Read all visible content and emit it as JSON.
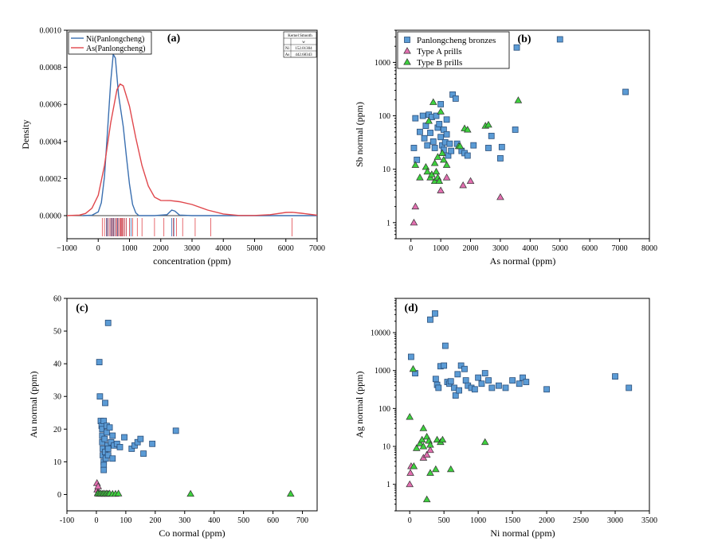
{
  "chart_data": [
    {
      "type": "line",
      "panel_label": "(a)",
      "xlabel": "concentration (ppm)",
      "ylabel": "Density",
      "xlim": [
        -1000,
        7000
      ],
      "ylim": [
        0,
        0.001
      ],
      "x_ticks": [
        -1000,
        0,
        1000,
        2000,
        3000,
        4000,
        5000,
        6000,
        7000
      ],
      "x_tick_labels": [
        "−1000",
        "0",
        "1000",
        "2000",
        "3000",
        "4000",
        "5000",
        "6000",
        "7000"
      ],
      "y_ticks": [
        0,
        0.0002,
        0.0004,
        0.0006,
        0.0008,
        0.001
      ],
      "y_tick_labels": [
        "0.0000",
        "0.0002",
        "0.0004",
        "0.0006",
        "0.0008",
        "0.0010"
      ],
      "legend_position": "top-left",
      "series": [
        {
          "name": "Ni(Panlongcheng)",
          "color": "#3a6fb0",
          "x": [
            -500,
            -200,
            0,
            100,
            200,
            300,
            400,
            480,
            550,
            650,
            800,
            900,
            1000,
            1100,
            1200,
            1300,
            1500,
            1800,
            2200,
            2350,
            2450,
            2600,
            3000,
            7000
          ],
          "y": [
            0,
            2e-06,
            2e-05,
            7e-05,
            0.00021,
            0.00046,
            0.00072,
            0.00087,
            0.00085,
            0.00065,
            0.00048,
            0.00032,
            0.00017,
            6e-05,
            1.5e-05,
            0,
            0,
            0,
            5e-06,
            3e-05,
            2.5e-05,
            3e-06,
            0,
            0
          ],
          "rug": [
            260,
            300,
            350,
            400,
            420,
            450,
            480,
            500,
            550,
            600,
            620,
            650,
            700,
            750,
            800,
            850,
            900,
            1000,
            1050,
            2350,
            2420
          ]
        },
        {
          "name": "As(Panlongcheng)",
          "color": "#e0474c",
          "x": [
            -1000,
            -600,
            -400,
            -200,
            0,
            200,
            400,
            600,
            700,
            800,
            1000,
            1200,
            1400,
            1600,
            1800,
            2000,
            2300,
            2600,
            3000,
            3500,
            4000,
            4500,
            5000,
            5500,
            6000,
            6200,
            6500,
            7000
          ],
          "y": [
            0,
            3e-06,
            1.2e-05,
            4e-05,
            0.00011,
            0.00027,
            0.0005,
            0.00068,
            0.00071,
            0.0007,
            0.00059,
            0.00042,
            0.00027,
            0.00016,
            0.0001,
            8.2e-05,
            8.1e-05,
            7.5e-05,
            6e-05,
            3e-05,
            9e-06,
            1e-06,
            1e-06,
            5e-06,
            1.7e-05,
            1.8e-05,
            1.3e-05,
            2e-06
          ],
          "rug": [
            130,
            200,
            280,
            350,
            400,
            450,
            500,
            560,
            600,
            650,
            700,
            720,
            750,
            780,
            800,
            850,
            900,
            1000,
            1100,
            1250,
            1400,
            1800,
            2100,
            2400,
            2500,
            2700,
            3100,
            3600,
            6200
          ]
        }
      ],
      "inset_table": {
        "title": "Kernel Smooth",
        "header": [
          "",
          "w"
        ],
        "rows": [
          [
            "Ni",
            "152.01304"
          ],
          [
            "As",
            "442.68343"
          ]
        ]
      }
    },
    {
      "type": "scatter",
      "panel_label": "(b)",
      "xlabel": "As normal (ppm)",
      "ylabel": "Sb normal (ppm)",
      "xlim": [
        -500,
        8000
      ],
      "ylim_log": [
        0.5,
        4000
      ],
      "y_scale": "log",
      "x_ticks": [
        0,
        1000,
        2000,
        3000,
        4000,
        5000,
        6000,
        7000,
        8000
      ],
      "y_ticks": [
        1,
        10,
        100,
        1000
      ],
      "legend_position": "top-left",
      "series": [
        {
          "name": "Panlongcheng bronzes",
          "marker": "square",
          "color": "#5b9bd5",
          "points": [
            [
              100,
              25
            ],
            [
              150,
              90
            ],
            [
              200,
              15
            ],
            [
              300,
              50
            ],
            [
              400,
              100
            ],
            [
              450,
              38
            ],
            [
              500,
              65
            ],
            [
              550,
              28
            ],
            [
              600,
              105
            ],
            [
              650,
              48
            ],
            [
              700,
              95
            ],
            [
              750,
              33
            ],
            [
              800,
              25
            ],
            [
              850,
              100
            ],
            [
              900,
              60
            ],
            [
              950,
              70
            ],
            [
              1000,
              40
            ],
            [
              1000,
              165
            ],
            [
              1050,
              28
            ],
            [
              1100,
              55
            ],
            [
              1100,
              23
            ],
            [
              1150,
              32
            ],
            [
              1200,
              45
            ],
            [
              1200,
              85
            ],
            [
              1250,
              18
            ],
            [
              1300,
              30
            ],
            [
              1350,
              22
            ],
            [
              1400,
              250
            ],
            [
              1500,
              210
            ],
            [
              1550,
              30
            ],
            [
              1700,
              22
            ],
            [
              1800,
              20
            ],
            [
              1900,
              18
            ],
            [
              2100,
              28
            ],
            [
              2600,
              25
            ],
            [
              2700,
              42
            ],
            [
              3000,
              16
            ],
            [
              3050,
              26
            ],
            [
              3500,
              55
            ],
            [
              3550,
              1900
            ],
            [
              5000,
              2700
            ],
            [
              7200,
              280
            ]
          ]
        },
        {
          "name": "Type A prills",
          "marker": "triangle",
          "color": "#e26fb0",
          "points": [
            [
              100,
              1
            ],
            [
              150,
              2
            ],
            [
              1000,
              4
            ],
            [
              1200,
              7
            ],
            [
              1750,
              5
            ],
            [
              2000,
              6
            ],
            [
              3000,
              3
            ]
          ]
        },
        {
          "name": "Type B prills",
          "marker": "triangle",
          "color": "#3ed13e",
          "points": [
            [
              150,
              12
            ],
            [
              300,
              7
            ],
            [
              500,
              11
            ],
            [
              550,
              9
            ],
            [
              600,
              80
            ],
            [
              650,
              7
            ],
            [
              700,
              8
            ],
            [
              750,
              180
            ],
            [
              800,
              6
            ],
            [
              800,
              13
            ],
            [
              850,
              9
            ],
            [
              900,
              7
            ],
            [
              900,
              17
            ],
            [
              950,
              6
            ],
            [
              1000,
              120
            ],
            [
              1050,
              20
            ],
            [
              1100,
              15
            ],
            [
              1200,
              12
            ],
            [
              1600,
              27
            ],
            [
              1650,
              27
            ],
            [
              1800,
              58
            ],
            [
              1900,
              55
            ],
            [
              2500,
              65
            ],
            [
              2600,
              68
            ],
            [
              3600,
              195
            ]
          ]
        }
      ]
    },
    {
      "type": "scatter",
      "panel_label": "(c)",
      "xlabel": "Co normal (ppm)",
      "ylabel": "Au normal (ppm)",
      "xlim": [
        -100,
        750
      ],
      "ylim": [
        -5,
        60
      ],
      "x_ticks": [
        -100,
        0,
        100,
        200,
        300,
        400,
        500,
        600,
        700
      ],
      "y_ticks": [
        0,
        10,
        20,
        30,
        40,
        50,
        60
      ],
      "series": [
        {
          "name": "Panlongcheng bronzes",
          "marker": "square",
          "color": "#5b9bd5",
          "points": [
            [
              10,
              40.5
            ],
            [
              12,
              30
            ],
            [
              15,
              22.5
            ],
            [
              18,
              21
            ],
            [
              20,
              20
            ],
            [
              20,
              18
            ],
            [
              20,
              16
            ],
            [
              22,
              14
            ],
            [
              22,
              12
            ],
            [
              25,
              10
            ],
            [
              25,
              9
            ],
            [
              25,
              7.5
            ],
            [
              25,
              22.5
            ],
            [
              28,
              17
            ],
            [
              30,
              13
            ],
            [
              30,
              28
            ],
            [
              32,
              11
            ],
            [
              35,
              21
            ],
            [
              35,
              19
            ],
            [
              38,
              15
            ],
            [
              40,
              52.5
            ],
            [
              40,
              12
            ],
            [
              40,
              14
            ],
            [
              45,
              20.5
            ],
            [
              50,
              16
            ],
            [
              55,
              18
            ],
            [
              55,
              11
            ],
            [
              60,
              15
            ],
            [
              70,
              15.5
            ],
            [
              80,
              14.5
            ],
            [
              95,
              17.5
            ],
            [
              120,
              14
            ],
            [
              130,
              15
            ],
            [
              140,
              16
            ],
            [
              150,
              17
            ],
            [
              160,
              12.5
            ],
            [
              190,
              15.5
            ],
            [
              270,
              19.5
            ]
          ]
        },
        {
          "name": "Type A prills",
          "marker": "triangle",
          "color": "#e26fb0",
          "points": [
            [
              2,
              3.5
            ],
            [
              3,
              1.5
            ],
            [
              5,
              0.5
            ],
            [
              6,
              2.5
            ]
          ]
        },
        {
          "name": "Type B prills",
          "marker": "triangle",
          "color": "#3ed13e",
          "points": [
            [
              5,
              0.3
            ],
            [
              10,
              0.2
            ],
            [
              15,
              0.3
            ],
            [
              20,
              0.2
            ],
            [
              25,
              0.3
            ],
            [
              30,
              0.2
            ],
            [
              35,
              0.3
            ],
            [
              40,
              0.2
            ],
            [
              45,
              0.3
            ],
            [
              55,
              0.2
            ],
            [
              65,
              0.2
            ],
            [
              75,
              0.3
            ],
            [
              320,
              0.2
            ],
            [
              660,
              0.2
            ]
          ]
        }
      ]
    },
    {
      "type": "scatter",
      "panel_label": "(d)",
      "xlabel": "Ni normal (ppm)",
      "ylabel": "Ag normal (ppm)",
      "xlim": [
        -200,
        3500
      ],
      "ylim_log": [
        0.2,
        80000
      ],
      "y_scale": "log",
      "x_ticks": [
        0,
        500,
        1000,
        1500,
        2000,
        2500,
        3000,
        3500
      ],
      "y_ticks": [
        1,
        10,
        100,
        1000,
        10000
      ],
      "series": [
        {
          "name": "Panlongcheng bronzes",
          "marker": "square",
          "color": "#5b9bd5",
          "points": [
            [
              20,
              2300
            ],
            [
              80,
              850
            ],
            [
              300,
              22000
            ],
            [
              370,
              32000
            ],
            [
              380,
              600
            ],
            [
              400,
              420
            ],
            [
              420,
              350
            ],
            [
              450,
              1300
            ],
            [
              500,
              1350
            ],
            [
              520,
              4500
            ],
            [
              550,
              500
            ],
            [
              580,
              450
            ],
            [
              600,
              520
            ],
            [
              650,
              350
            ],
            [
              670,
              220
            ],
            [
              700,
              800
            ],
            [
              720,
              300
            ],
            [
              750,
              1350
            ],
            [
              800,
              1100
            ],
            [
              820,
              550
            ],
            [
              850,
              400
            ],
            [
              900,
              350
            ],
            [
              950,
              320
            ],
            [
              1000,
              650
            ],
            [
              1050,
              450
            ],
            [
              1100,
              850
            ],
            [
              1150,
              550
            ],
            [
              1200,
              350
            ],
            [
              1300,
              400
            ],
            [
              1400,
              350
            ],
            [
              1500,
              550
            ],
            [
              1600,
              450
            ],
            [
              1650,
              650
            ],
            [
              1700,
              500
            ],
            [
              2000,
              320
            ],
            [
              3000,
              700
            ],
            [
              3200,
              350
            ]
          ]
        },
        {
          "name": "Type A prills",
          "marker": "triangle",
          "color": "#e26fb0",
          "points": [
            [
              0,
              1
            ],
            [
              10,
              2
            ],
            [
              20,
              3
            ],
            [
              200,
              5
            ],
            [
              250,
              6
            ],
            [
              300,
              8
            ]
          ]
        },
        {
          "name": "Type B prills",
          "marker": "triangle",
          "color": "#3ed13e",
          "points": [
            [
              0,
              60
            ],
            [
              50,
              1100
            ],
            [
              60,
              3
            ],
            [
              100,
              9
            ],
            [
              150,
              12
            ],
            [
              180,
              15
            ],
            [
              200,
              30
            ],
            [
              200,
              10
            ],
            [
              250,
              18
            ],
            [
              280,
              14
            ],
            [
              300,
              2
            ],
            [
              300,
              11
            ],
            [
              380,
              2.5
            ],
            [
              400,
              15
            ],
            [
              450,
              13
            ],
            [
              480,
              15
            ],
            [
              600,
              2.5
            ],
            [
              1100,
              13
            ],
            [
              250,
              0.4
            ]
          ]
        }
      ]
    }
  ]
}
